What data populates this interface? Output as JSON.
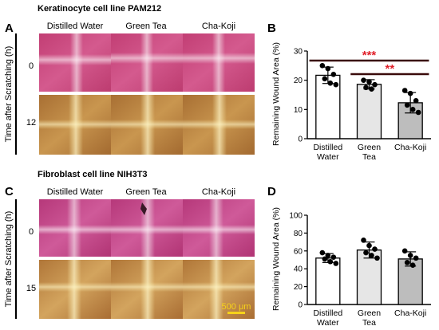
{
  "panel_letters": [
    "A",
    "B",
    "C",
    "D"
  ],
  "titles": {
    "top": "Keratinocyte cell line PAM212",
    "bottom": "Fibroblast cell line NIH3T3"
  },
  "image_panels": {
    "columns": [
      "Distilled Water",
      "Green Tea",
      "Cha-Koji"
    ],
    "y_axis_label": "Time after Scratching (h)",
    "top_times": [
      "0",
      "12"
    ],
    "bottom_times": [
      "0",
      "15"
    ],
    "scale_bar_label": "500 μm",
    "colors": {
      "stain_pink": "#c6467c",
      "stain_brown": "#b98540",
      "scale_bar": "#f6d21a"
    }
  },
  "chart_data": [
    {
      "type": "bar",
      "panel": "B",
      "categories": [
        "Distilled Water",
        "Green Tea",
        "Cha-Koji"
      ],
      "category_lines": [
        [
          "Distilled",
          "Water"
        ],
        [
          "Green",
          "Tea"
        ],
        [
          "Cha-Koji"
        ]
      ],
      "values": [
        21.7,
        18.6,
        12.3
      ],
      "errors": [
        2.8,
        1.6,
        3.5
      ],
      "points": [
        [
          25.0,
          24.0,
          22.0,
          20.5,
          19.0,
          18.5
        ],
        [
          20.0,
          19.5,
          18.5,
          17.5,
          17.0
        ],
        [
          16.5,
          15.5,
          13.0,
          11.5,
          10.0,
          9.0
        ]
      ],
      "bar_colors": [
        "#ffffff",
        "#e6e6e6",
        "#bdbdbd"
      ],
      "ylabel": "Remaining Wound Area (%)",
      "xlabel": "",
      "ylim": [
        0,
        30
      ],
      "yticks": [
        0,
        10,
        20,
        30
      ],
      "significance": [
        {
          "from": 0,
          "to": 2,
          "label": "***",
          "color": "#e0202a"
        },
        {
          "from": 1,
          "to": 2,
          "label": "**",
          "color": "#e0202a"
        }
      ]
    },
    {
      "type": "bar",
      "panel": "D",
      "categories": [
        "Distilled Water",
        "Green Tea",
        "Cha-Koji"
      ],
      "category_lines": [
        [
          "Distilled",
          "Water"
        ],
        [
          "Green",
          "Tea"
        ],
        [
          "Cha-Koji"
        ]
      ],
      "values": [
        52,
        61,
        51
      ],
      "errors": [
        5,
        9,
        8
      ],
      "points": [
        [
          58,
          55,
          53,
          51,
          48,
          46
        ],
        [
          72,
          66,
          62,
          58,
          55,
          52
        ],
        [
          60,
          55,
          52,
          47,
          44
        ]
      ],
      "bar_colors": [
        "#ffffff",
        "#e6e6e6",
        "#bdbdbd"
      ],
      "ylabel": "Remaining Wound Area (%)",
      "xlabel": "",
      "ylim": [
        0,
        100
      ],
      "yticks": [
        0,
        20,
        40,
        60,
        80,
        100
      ],
      "significance": []
    }
  ]
}
